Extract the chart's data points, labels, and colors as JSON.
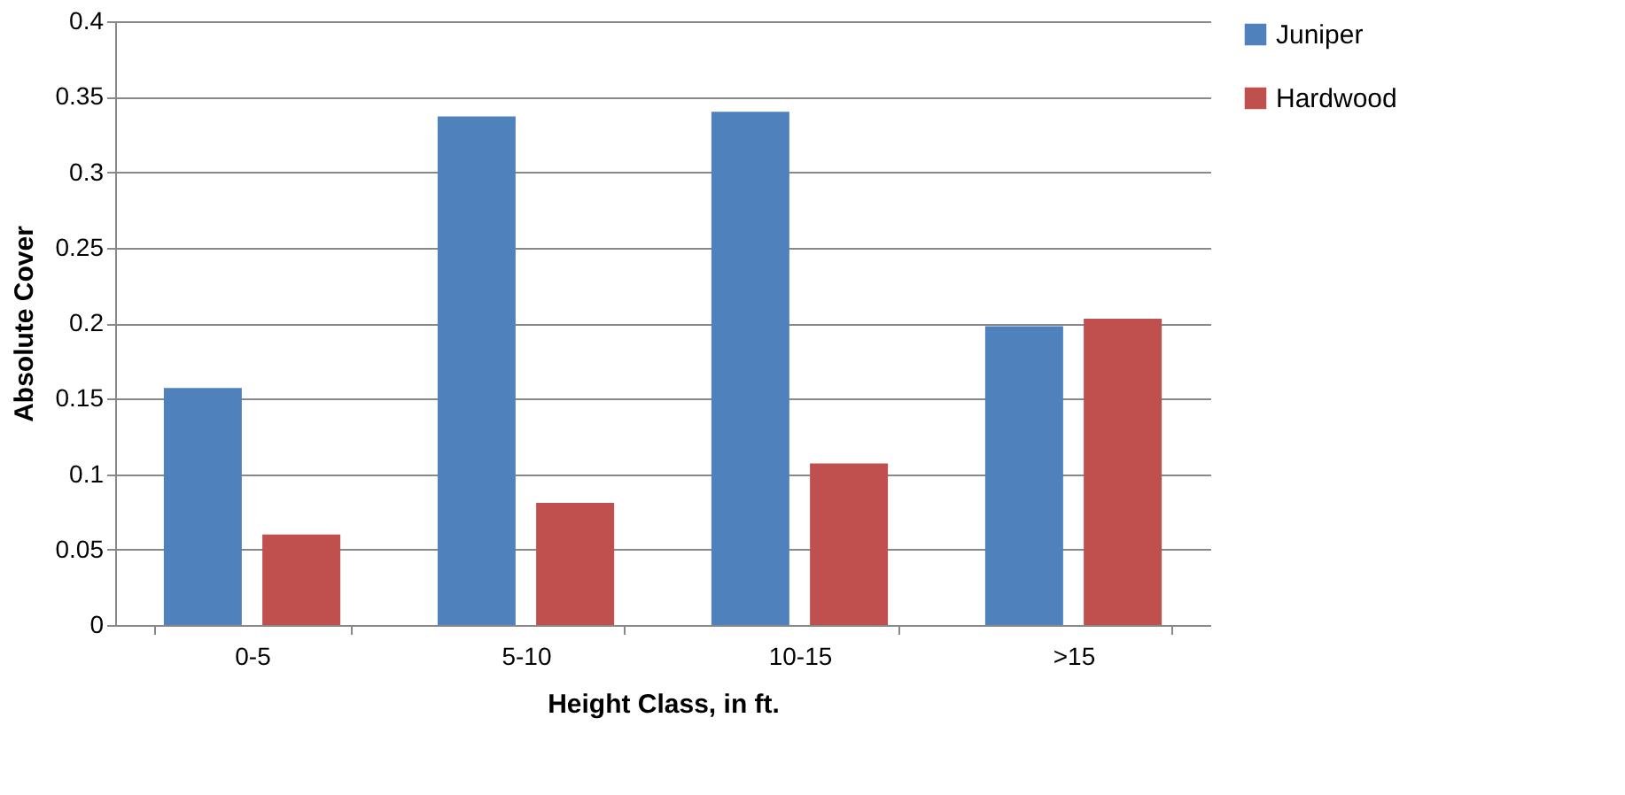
{
  "chart_data": {
    "type": "bar",
    "xlabel": "Height Class, in ft.",
    "ylabel": "Absolute Cover",
    "categories": [
      "0-5",
      "5-10",
      "10-15",
      ">15"
    ],
    "series": [
      {
        "name": "Juniper",
        "color": "#4f81bd",
        "values": [
          0.157,
          0.337,
          0.34,
          0.198
        ]
      },
      {
        "name": "Hardwood",
        "color": "#c0504d",
        "values": [
          0.06,
          0.081,
          0.107,
          0.203
        ]
      }
    ],
    "ylim": [
      0,
      0.4
    ],
    "yticks": [
      0,
      0.05,
      0.1,
      0.15,
      0.2,
      0.25,
      0.3,
      0.35,
      0.4
    ],
    "grid": "y",
    "legend": "right"
  }
}
